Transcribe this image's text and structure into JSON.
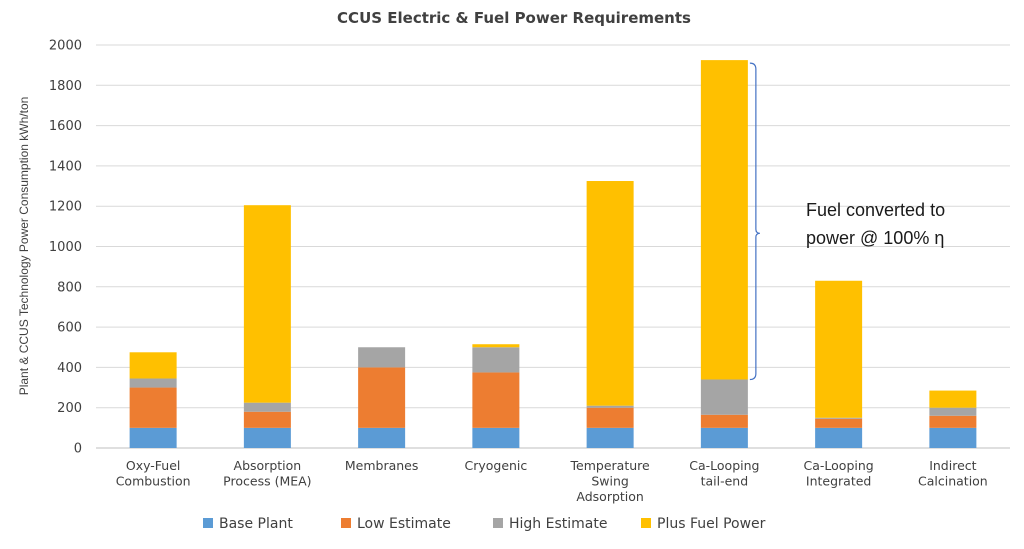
{
  "chart_data": {
    "type": "bar",
    "stacked": true,
    "title": "CCUS Electric & Fuel Power Requirements",
    "xlabel": "",
    "ylabel": "Plant & CCUS Technology Power Consumption kWh/ton",
    "ylim": [
      0,
      2000
    ],
    "yticks": [
      "0",
      "200",
      "400",
      "600",
      "800",
      "1000",
      "1200",
      "1400",
      "1600",
      "1800",
      "2000"
    ],
    "grid": true,
    "legend_position": "bottom",
    "categories": [
      [
        "Oxy-Fuel",
        "Combustion"
      ],
      [
        "Absorption",
        "Process (MEA)"
      ],
      [
        "Membranes"
      ],
      [
        "Cryogenic"
      ],
      [
        "Temperature",
        "Swing",
        "Adsorption"
      ],
      [
        "Ca-Looping",
        "tail-end"
      ],
      [
        "Ca-Looping",
        "Integrated"
      ],
      [
        "Indirect",
        "Calcination"
      ]
    ],
    "series": [
      {
        "name": "Base Plant",
        "color": "#5b9bd5",
        "values": [
          100,
          100,
          100,
          100,
          100,
          100,
          100,
          100
        ]
      },
      {
        "name": "Low Estimate",
        "color": "#ed7d31",
        "values": [
          200,
          80,
          300,
          275,
          100,
          65,
          45,
          60
        ]
      },
      {
        "name": "High Estimate",
        "color": "#a5a5a5",
        "values": [
          45,
          45,
          100,
          125,
          10,
          175,
          5,
          40
        ]
      },
      {
        "name": "Plus Fuel Power",
        "color": "#ffc000",
        "values": [
          130,
          980,
          0,
          15,
          1115,
          1585,
          680,
          85
        ]
      }
    ],
    "annotation": {
      "lines": [
        "Fuel converted to",
        "power @ 100% η"
      ],
      "target": "Ca-Looping tail-end",
      "range": [
        340,
        1925
      ]
    }
  }
}
